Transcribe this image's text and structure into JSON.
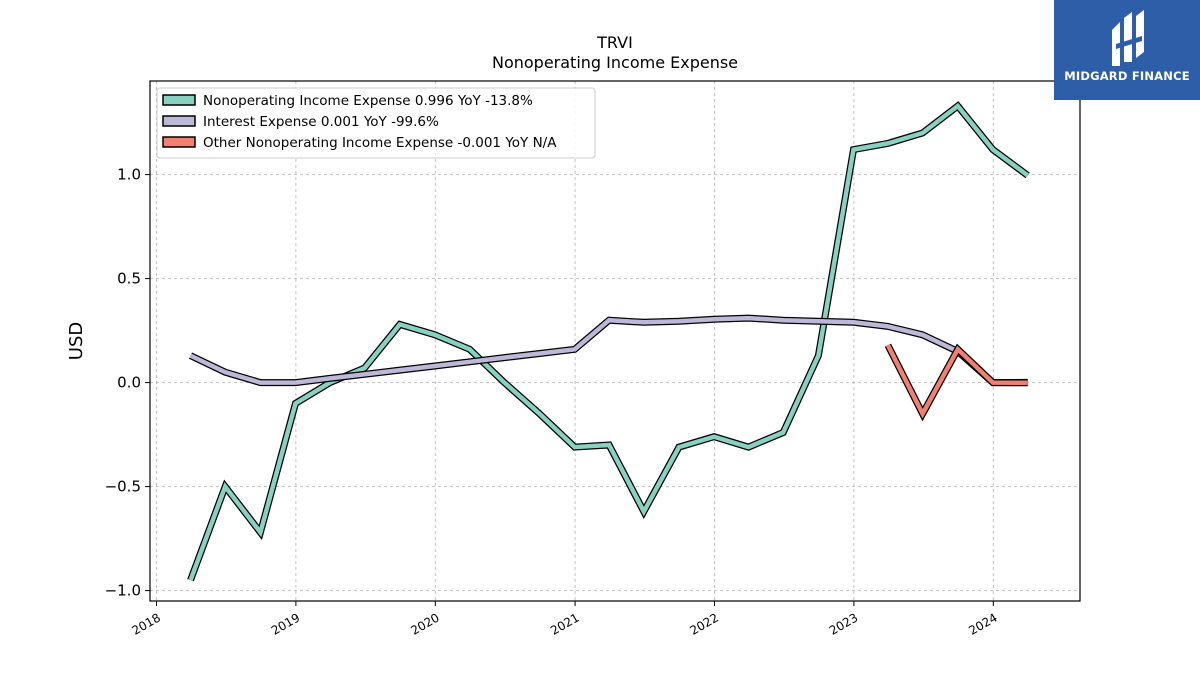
{
  "chart_data": {
    "type": "line",
    "title": "TRVI",
    "subtitle": "Nonoperating Income Expense",
    "ylabel": "USD",
    "xlabel": "",
    "ylim": [
      -1.05,
      1.45
    ],
    "xlim": [
      "2017-12-15",
      "2024-08-15"
    ],
    "yticks": [
      -1.0,
      -0.5,
      0.0,
      0.5,
      1.0
    ],
    "ytick_labels": [
      "−1.0",
      "−0.5",
      "0.0",
      "0.5",
      "1.0"
    ],
    "xticks": [
      "2018-01-01",
      "2019-01-01",
      "2020-01-01",
      "2021-01-01",
      "2022-01-01",
      "2023-01-01",
      "2024-01-01"
    ],
    "xtick_labels": [
      "2018",
      "2019",
      "2020",
      "2021",
      "2022",
      "2023",
      "2024"
    ],
    "grid": true,
    "legend_position": "top-left",
    "series": [
      {
        "name": "Nonoperating Income Expense  0.996 YoY -13.8%",
        "color": "#88d1c1",
        "x": [
          "2018-03-31",
          "2018-06-30",
          "2018-09-30",
          "2018-12-31",
          "2019-03-31",
          "2019-06-30",
          "2019-09-30",
          "2019-12-31",
          "2020-03-31",
          "2020-06-30",
          "2020-09-30",
          "2020-12-31",
          "2021-03-31",
          "2021-06-30",
          "2021-09-30",
          "2021-12-31",
          "2022-03-31",
          "2022-06-30",
          "2022-09-30",
          "2022-12-31",
          "2023-03-31",
          "2023-06-30",
          "2023-09-30",
          "2023-12-31",
          "2024-03-31"
        ],
        "values": [
          -0.95,
          -0.5,
          -0.72,
          -0.1,
          0.0,
          0.07,
          0.28,
          0.23,
          0.16,
          0.0,
          -0.15,
          -0.31,
          -0.3,
          -0.62,
          -0.31,
          -0.26,
          -0.31,
          -0.24,
          0.13,
          1.12,
          1.15,
          1.2,
          1.33,
          1.12,
          0.996
        ]
      },
      {
        "name": "Interest Expense  0.001 YoY -99.6%",
        "color": "#bcb8d8",
        "x": [
          "2018-03-31",
          "2018-06-30",
          "2018-09-30",
          "2018-12-31",
          "2019-03-31",
          "2019-06-30",
          "2019-09-30",
          "2019-12-31",
          "2020-03-31",
          "2020-06-30",
          "2020-09-30",
          "2020-12-31",
          "2021-03-31",
          "2021-06-30",
          "2021-09-30",
          "2021-12-31",
          "2022-03-31",
          "2022-06-30",
          "2022-09-30",
          "2022-12-31",
          "2023-03-31",
          "2023-06-30",
          "2023-09-30",
          "2023-12-31",
          "2024-03-31"
        ],
        "values": [
          0.13,
          0.05,
          0.0,
          0.0,
          0.02,
          0.04,
          0.06,
          0.08,
          0.1,
          0.12,
          0.14,
          0.16,
          0.3,
          0.29,
          0.295,
          0.305,
          0.31,
          0.3,
          0.295,
          0.29,
          0.27,
          0.23,
          0.15,
          0.0,
          0.001
        ]
      },
      {
        "name": "Other Nonoperating Income Expense  -0.001 YoY N/A",
        "color": "#f28072",
        "x": [
          "2023-03-31",
          "2023-06-30",
          "2023-09-30",
          "2023-12-31",
          "2024-03-31"
        ],
        "values": [
          0.18,
          -0.15,
          0.16,
          0.0,
          -0.001
        ]
      }
    ]
  },
  "logo": {
    "text": "MIDGARD FINANCE",
    "color": "#2f5ea8"
  }
}
